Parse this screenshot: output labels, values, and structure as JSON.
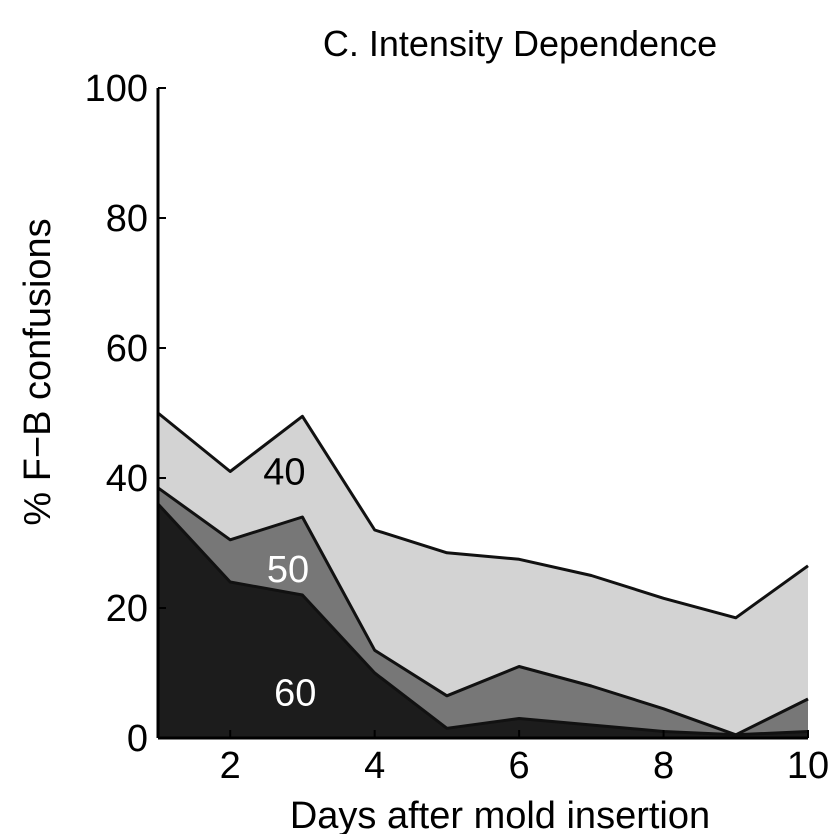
{
  "chart_data": {
    "type": "area",
    "stacked": true,
    "title": "C. Intensity Dependence",
    "xlabel": "Days after mold insertion",
    "ylabel": "% F−B confusions",
    "xlim": [
      1,
      10
    ],
    "ylim": [
      0,
      100
    ],
    "xticks": [
      2,
      4,
      6,
      8,
      10
    ],
    "yticks": [
      0,
      20,
      40,
      60,
      80,
      100
    ],
    "grid": false,
    "x": [
      1,
      2,
      3,
      4,
      5,
      6,
      7,
      8,
      9,
      10
    ],
    "series": [
      {
        "name": "60",
        "color": "#1c1c1c",
        "label_color": "#ffffff",
        "label_at": [
          2.9,
          7
        ],
        "values": [
          36,
          24,
          22,
          10,
          1.5,
          3,
          2,
          1,
          0.5,
          1
        ]
      },
      {
        "name": "50",
        "color": "#777777",
        "label_color": "#ffffff",
        "label_at": [
          2.8,
          26
        ],
        "values": [
          2.5,
          6.5,
          12,
          3.5,
          5,
          8,
          6,
          3.5,
          0,
          5
        ]
      },
      {
        "name": "40",
        "color": "#d3d3d3",
        "label_color": "#000000",
        "label_at": [
          2.75,
          41
        ],
        "values": [
          11.5,
          10.5,
          15.5,
          18.5,
          22,
          16.5,
          17,
          17,
          18,
          20.5
        ]
      }
    ]
  }
}
